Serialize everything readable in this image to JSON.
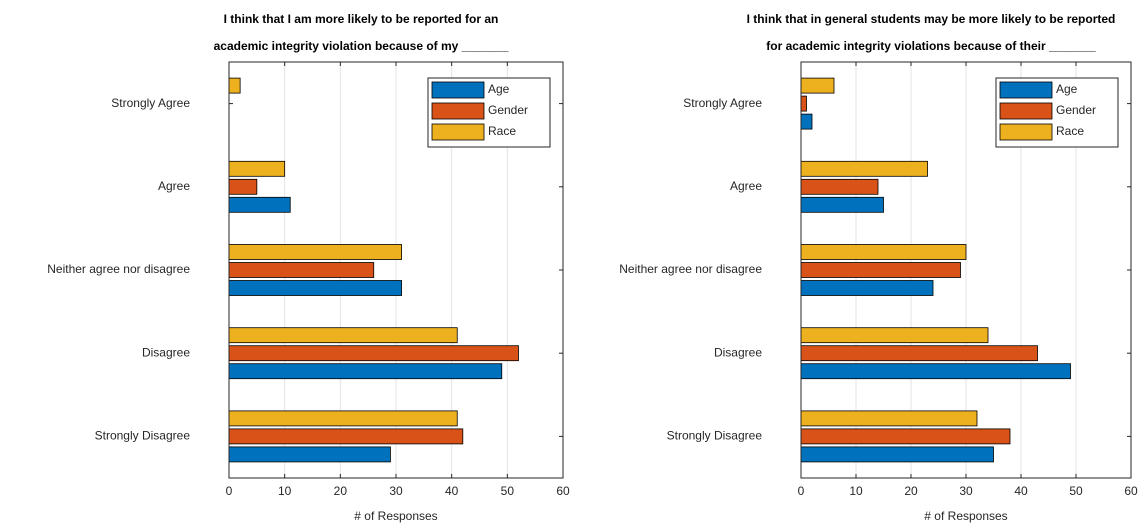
{
  "chart_data": [
    {
      "type": "bar",
      "orientation": "horizontal",
      "title": [
        "I think that I am more likely to be reported for an",
        "academic integrity violation because of my _______"
      ],
      "xlabel": "# of Responses",
      "categories": [
        "Strongly Agree",
        "Agree",
        "Neither agree nor disagree",
        "Disagree",
        "Strongly Disagree"
      ],
      "series": [
        {
          "name": "Age",
          "color": "#0072BD",
          "values": [
            0,
            11,
            31,
            49,
            29
          ]
        },
        {
          "name": "Gender",
          "color": "#D95319",
          "values": [
            0,
            5,
            26,
            52,
            42
          ]
        },
        {
          "name": "Race",
          "color": "#EDB120",
          "values": [
            2,
            10,
            31,
            41,
            41
          ]
        }
      ],
      "xlim": [
        0,
        60
      ],
      "xticks": [
        0,
        10,
        20,
        30,
        40,
        50,
        60
      ],
      "grid": true,
      "legend": "upper right"
    },
    {
      "type": "bar",
      "orientation": "horizontal",
      "title": [
        "I think that in general students may be more likely to be reported",
        "for academic integrity violations because of their _______"
      ],
      "xlabel": "# of Responses",
      "categories": [
        "Strongly Agree",
        "Agree",
        "Neither agree nor disagree",
        "Disagree",
        "Strongly Disagree"
      ],
      "series": [
        {
          "name": "Age",
          "color": "#0072BD",
          "values": [
            2,
            15,
            24,
            49,
            35
          ]
        },
        {
          "name": "Gender",
          "color": "#D95319",
          "values": [
            1,
            14,
            29,
            43,
            38
          ]
        },
        {
          "name": "Race",
          "color": "#EDB120",
          "values": [
            6,
            23,
            30,
            34,
            32
          ]
        }
      ],
      "xlim": [
        0,
        60
      ],
      "xticks": [
        0,
        10,
        20,
        30,
        40,
        50,
        60
      ],
      "grid": true,
      "legend": "upper right"
    }
  ]
}
